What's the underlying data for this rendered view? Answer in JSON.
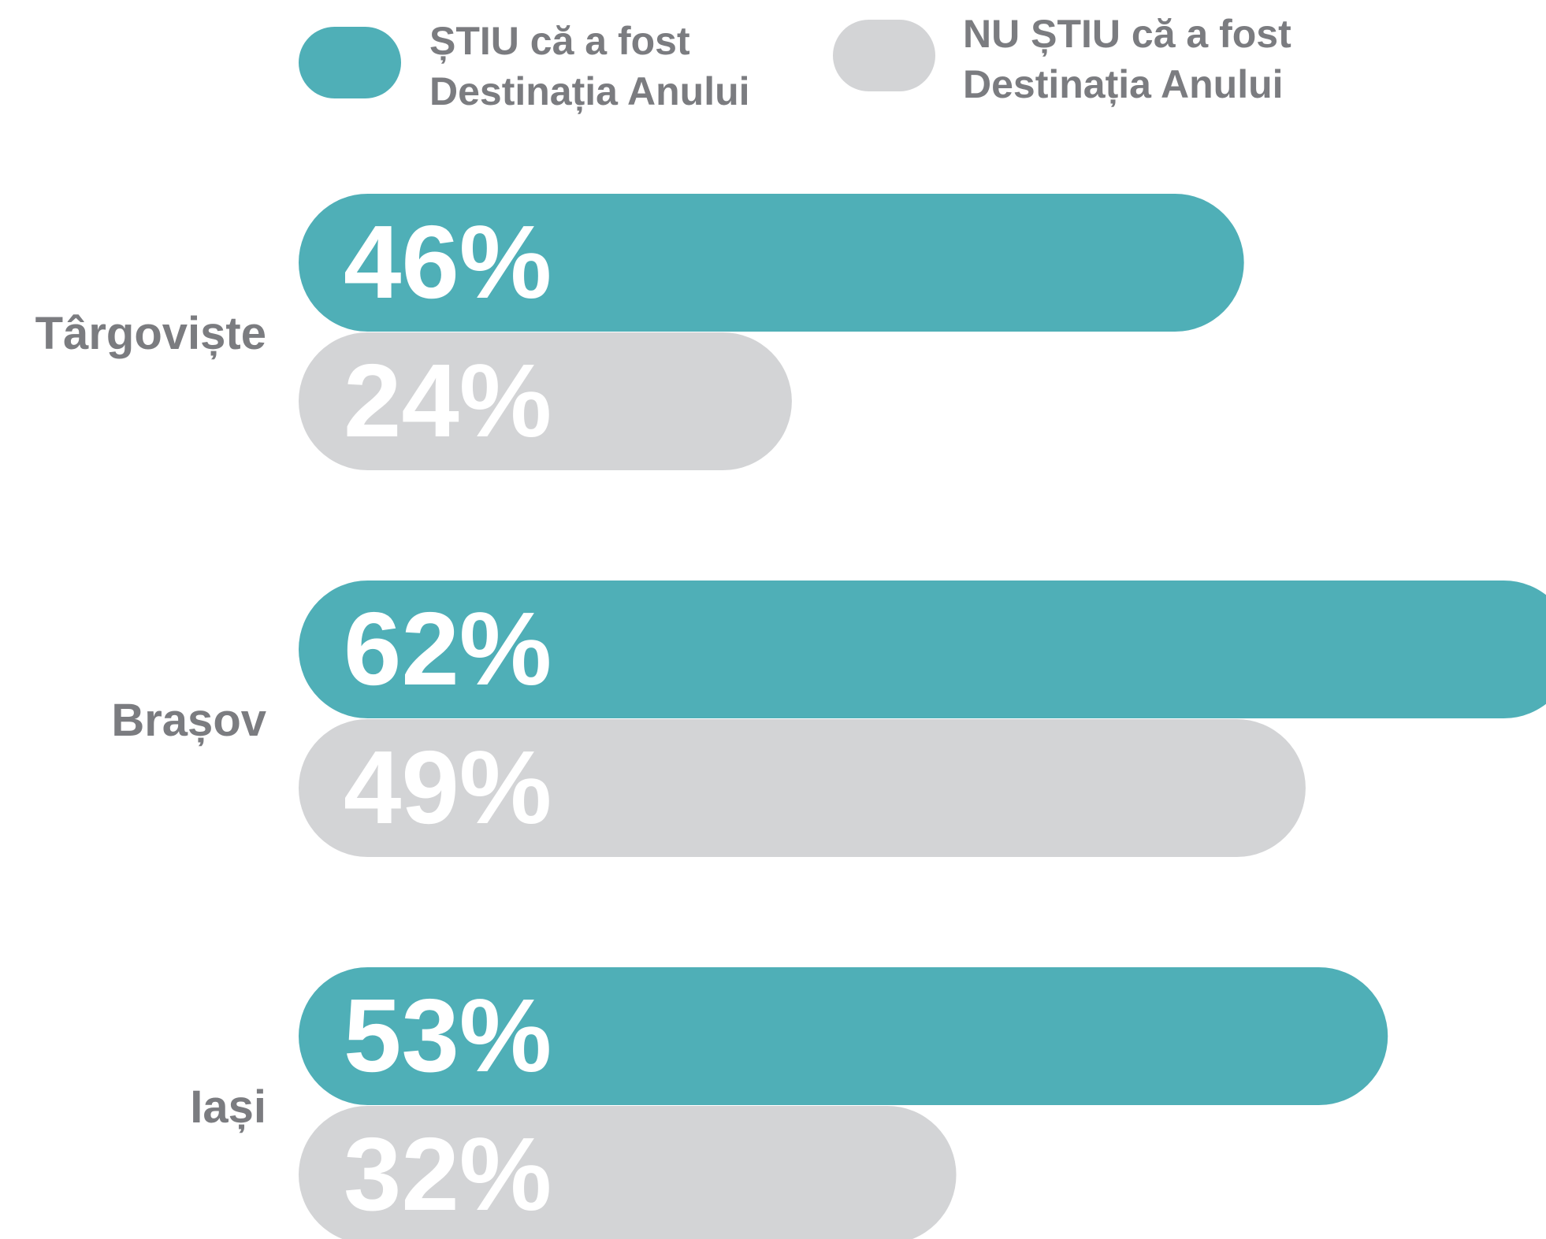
{
  "chart_data": {
    "type": "bar",
    "orientation": "horizontal",
    "categories": [
      "Târgoviște",
      "Brașov",
      "Iași"
    ],
    "series": [
      {
        "name": "ȘTIU că a fost Destinația Anului",
        "color": "#4fafb7",
        "values": [
          46,
          62,
          53
        ],
        "value_labels": [
          "46%",
          "62%",
          "53%"
        ]
      },
      {
        "name": "NU ȘTIU că a fost Destinația Anului",
        "color": "#d3d4d6",
        "values": [
          24,
          49,
          32
        ],
        "value_labels": [
          "24%",
          "49%",
          "32%"
        ]
      }
    ],
    "legend": "top"
  }
}
